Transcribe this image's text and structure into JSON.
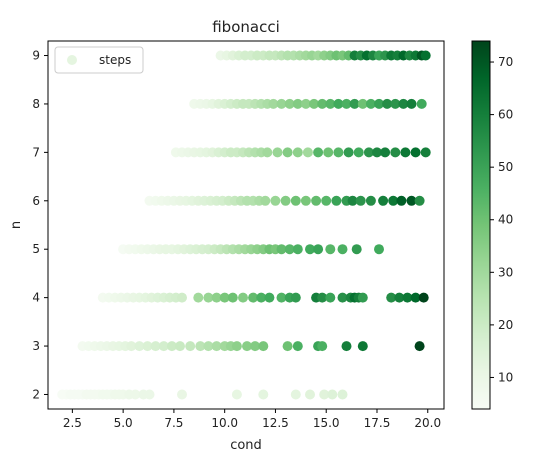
{
  "chart_data": {
    "type": "scatter",
    "title": "fibonacci",
    "xlabel": "cond",
    "ylabel": "n",
    "xlim": [
      1.3,
      20.8
    ],
    "ylim": [
      1.7,
      9.3
    ],
    "xticks": [
      "2.5",
      "5.0",
      "7.5",
      "10.0",
      "12.5",
      "15.0",
      "17.5",
      "20.0"
    ],
    "yticks": [
      "2",
      "3",
      "4",
      "5",
      "6",
      "7",
      "8",
      "9"
    ],
    "colorbar": {
      "min": 4,
      "max": 74,
      "ticks": [
        "10",
        "20",
        "30",
        "40",
        "50",
        "60",
        "70"
      ],
      "colormap": "Greens"
    },
    "legend": {
      "label": "steps",
      "position": "top-left"
    },
    "series": [
      {
        "n": 2,
        "x": [
          2.0,
          2.2,
          2.4,
          2.6,
          2.8,
          3.0,
          3.2,
          3.4,
          3.6,
          3.8,
          4.0,
          4.2,
          4.4,
          4.6,
          4.8,
          5.0,
          5.3,
          5.6,
          6.0,
          6.3,
          7.9,
          10.6,
          11.9,
          13.5,
          14.2,
          14.9,
          15.3,
          15.8
        ],
        "c": [
          4,
          4,
          5,
          5,
          5,
          5,
          6,
          6,
          6,
          6,
          7,
          7,
          7,
          8,
          8,
          8,
          9,
          9,
          10,
          10,
          11,
          12,
          13,
          13,
          14,
          14,
          15,
          15
        ]
      },
      {
        "n": 3,
        "x": [
          3.0,
          3.3,
          3.6,
          3.9,
          4.2,
          4.5,
          4.8,
          5.1,
          5.4,
          5.8,
          6.2,
          6.6,
          7.0,
          7.4,
          7.8,
          8.3,
          8.8,
          9.2,
          9.6,
          10.0,
          10.3,
          10.6,
          11.1,
          11.5,
          11.9,
          13.1,
          13.6,
          14.6,
          14.8,
          16.0,
          16.8,
          19.6
        ],
        "c": [
          6,
          7,
          8,
          9,
          10,
          11,
          12,
          13,
          14,
          15,
          16,
          17,
          18,
          20,
          21,
          22,
          24,
          26,
          28,
          30,
          32,
          34,
          35,
          36,
          38,
          40,
          46,
          50,
          46,
          60,
          62,
          74
        ]
      },
      {
        "n": 4,
        "x": [
          4.0,
          4.3,
          4.6,
          4.9,
          5.2,
          5.5,
          5.8,
          6.1,
          6.4,
          6.7,
          7.0,
          7.3,
          7.6,
          7.9,
          8.7,
          9.2,
          9.6,
          10.0,
          10.4,
          10.9,
          11.4,
          11.8,
          12.2,
          12.8,
          13.2,
          13.5,
          14.5,
          14.8,
          15.2,
          15.8,
          16.2,
          16.4,
          16.6,
          16.8,
          18.2,
          18.6,
          19.0,
          19.4,
          19.8
        ],
        "c": [
          6,
          7,
          8,
          9,
          10,
          11,
          12,
          13,
          14,
          15,
          16,
          17,
          18,
          19,
          30,
          32,
          34,
          38,
          40,
          36,
          42,
          46,
          48,
          45,
          50,
          52,
          60,
          56,
          50,
          55,
          58,
          64,
          60,
          52,
          56,
          60,
          62,
          66,
          74
        ]
      },
      {
        "n": 5,
        "x": [
          5.0,
          5.3,
          5.6,
          5.9,
          6.2,
          6.5,
          6.8,
          7.1,
          7.4,
          7.7,
          8.0,
          8.3,
          8.6,
          8.9,
          9.2,
          9.5,
          9.8,
          10.1,
          10.4,
          10.7,
          11.0,
          11.3,
          11.6,
          11.9,
          12.2,
          12.5,
          12.8,
          13.2,
          13.6,
          14.2,
          14.6,
          15.2,
          15.8,
          16.5,
          17.6
        ],
        "c": [
          5,
          6,
          7,
          8,
          9,
          10,
          11,
          12,
          12,
          13,
          14,
          15,
          16,
          17,
          18,
          20,
          22,
          24,
          26,
          28,
          30,
          32,
          34,
          36,
          40,
          38,
          42,
          44,
          46,
          48,
          50,
          44,
          46,
          52,
          48
        ]
      },
      {
        "n": 6,
        "x": [
          6.3,
          6.6,
          6.9,
          7.2,
          7.5,
          7.8,
          8.1,
          8.4,
          8.7,
          9.0,
          9.3,
          9.6,
          9.9,
          10.2,
          10.5,
          10.8,
          11.1,
          11.4,
          11.7,
          12.0,
          12.5,
          13.0,
          13.5,
          14.0,
          14.5,
          15.0,
          15.5,
          16.0,
          16.3,
          16.7,
          17.2,
          17.8,
          18.3,
          18.7,
          19.2,
          19.6
        ],
        "c": [
          6,
          7,
          8,
          9,
          10,
          11,
          12,
          13,
          14,
          15,
          16,
          17,
          18,
          20,
          22,
          24,
          26,
          26,
          28,
          30,
          32,
          36,
          40,
          38,
          42,
          44,
          50,
          52,
          58,
          54,
          56,
          60,
          62,
          68,
          70,
          56
        ]
      },
      {
        "n": 7,
        "x": [
          7.6,
          7.9,
          8.2,
          8.5,
          8.8,
          9.1,
          9.4,
          9.7,
          10.0,
          10.3,
          10.6,
          10.9,
          11.2,
          11.5,
          11.8,
          12.1,
          12.6,
          13.1,
          13.6,
          14.1,
          14.6,
          15.1,
          15.6,
          16.1,
          16.6,
          17.1,
          17.5,
          17.9,
          18.4,
          18.9,
          19.4,
          19.9
        ],
        "c": [
          8,
          9,
          10,
          11,
          12,
          13,
          14,
          16,
          18,
          20,
          20,
          22,
          24,
          26,
          28,
          30,
          32,
          36,
          34,
          30,
          44,
          40,
          44,
          52,
          48,
          54,
          58,
          60,
          56,
          62,
          64,
          60
        ]
      },
      {
        "n": 8,
        "x": [
          8.5,
          8.8,
          9.1,
          9.4,
          9.7,
          10.0,
          10.3,
          10.6,
          10.9,
          11.2,
          11.5,
          11.8,
          12.1,
          12.4,
          12.8,
          13.2,
          13.6,
          14.0,
          14.4,
          14.8,
          15.2,
          15.6,
          16.0,
          16.4,
          16.8,
          17.2,
          17.6,
          18.0,
          18.4,
          18.8,
          19.2,
          19.7
        ],
        "c": [
          8,
          9,
          10,
          12,
          14,
          16,
          18,
          20,
          22,
          22,
          24,
          26,
          28,
          30,
          32,
          34,
          36,
          34,
          38,
          42,
          44,
          48,
          46,
          52,
          40,
          46,
          50,
          56,
          54,
          58,
          60,
          48
        ]
      },
      {
        "n": 9,
        "x": [
          9.8,
          10.1,
          10.4,
          10.7,
          11.0,
          11.3,
          11.6,
          11.9,
          12.2,
          12.5,
          12.8,
          13.1,
          13.4,
          13.7,
          14.0,
          14.3,
          14.6,
          14.9,
          15.2,
          15.5,
          15.8,
          16.1,
          16.4,
          16.7,
          17.0,
          17.3,
          17.6,
          17.9,
          18.2,
          18.5,
          18.8,
          19.1,
          19.4,
          19.7,
          19.9
        ],
        "c": [
          10,
          12,
          14,
          16,
          18,
          18,
          20,
          20,
          22,
          22,
          24,
          26,
          26,
          28,
          30,
          32,
          30,
          34,
          36,
          40,
          38,
          42,
          60,
          56,
          64,
          58,
          50,
          54,
          62,
          60,
          66,
          58,
          62,
          70,
          64
        ]
      }
    ]
  }
}
